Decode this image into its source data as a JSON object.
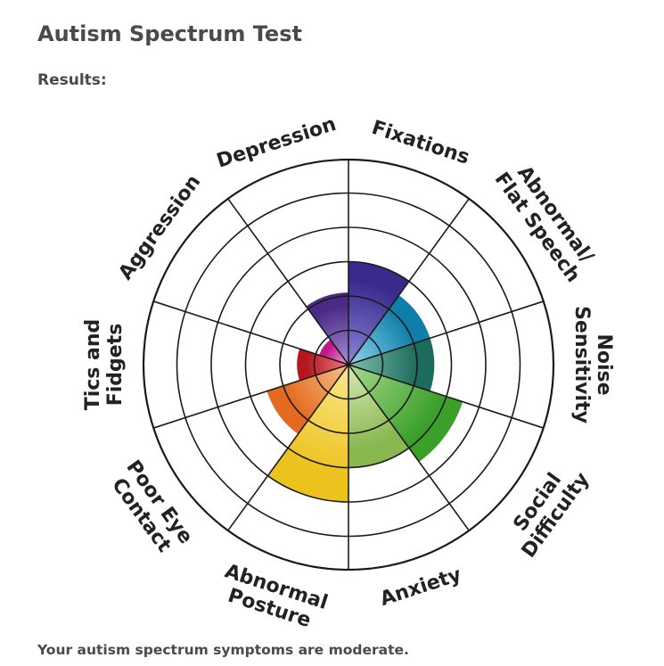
{
  "page": {
    "title": "Autism Spectrum Test",
    "results_label": "Results:",
    "summary": "Your autism spectrum symptoms are moderate."
  },
  "chart_data": {
    "type": "radial-bar",
    "max_level": 5,
    "categories": [
      {
        "name": [
          "Fixations"
        ],
        "value": 3,
        "color_outer": "#3a2a8e",
        "color_inner": "#8a85d8"
      },
      {
        "name": [
          "Abnormal/",
          "Flat Speech"
        ],
        "value": 2.5,
        "color_outer": "#0f7ea8",
        "color_inner": "#8ed6ee"
      },
      {
        "name": [
          "Noise",
          "Sensitivity"
        ],
        "value": 2.5,
        "color_outer": "#1c6b5c",
        "color_inner": "#80bfae"
      },
      {
        "name": [
          "Social",
          "Difficulty"
        ],
        "value": 3.5,
        "color_outer": "#3aa02a",
        "color_inner": "#a9d98e"
      },
      {
        "name": [
          "Anxiety"
        ],
        "value": 3,
        "color_outer": "#8ab850",
        "color_inner": "#d7e8b8"
      },
      {
        "name": [
          "Abnormal",
          "Posture"
        ],
        "value": 4,
        "color_outer": "#ecc21c",
        "color_inner": "#fbe890"
      },
      {
        "name": [
          "Poor Eye",
          "Contact"
        ],
        "value": 2.5,
        "color_outer": "#e36a1e",
        "color_inner": "#f8c08a"
      },
      {
        "name": [
          "Tics and",
          "Fidgets"
        ],
        "value": 1.5,
        "color_outer": "#b6161e",
        "color_inner": "#f07a80"
      },
      {
        "name": [
          "Aggression"
        ],
        "value": 0.9,
        "color_outer": "#c0178c",
        "color_inner": "#f5a0dc"
      },
      {
        "name": [
          "Depression"
        ],
        "value": 2.1,
        "color_outer": "#4a2a86",
        "color_inner": "#a690d6"
      }
    ]
  }
}
